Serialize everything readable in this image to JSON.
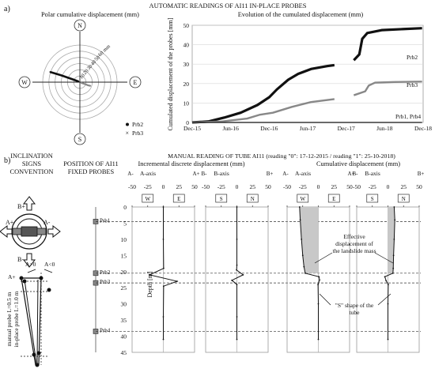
{
  "panel_a": {
    "label": "a)",
    "main_title": "AUTOMATIC READINGS OF AI11 IN-PLACE PROBES",
    "polar": {
      "title": "Polar cumulative displacement (mm)",
      "compass": [
        "N",
        "E",
        "S",
        "W"
      ],
      "ring_labels": [
        "10",
        "20",
        "30",
        "40",
        "50",
        "60 mm"
      ],
      "ring_values": [
        10,
        20,
        30,
        40,
        50,
        60
      ],
      "legend": [
        {
          "name": "Prb2",
          "color": "#111111",
          "marker": "circle"
        },
        {
          "name": "Prb3",
          "color": "#888888",
          "marker": "x"
        }
      ]
    }
  },
  "panel_b": {
    "label": "b)",
    "conv_title": [
      "INCLINATION",
      "SIGNS",
      "CONVENTION"
    ],
    "conv_labels": {
      "bplus": "B+",
      "bminus": "B-",
      "aplus": "A+",
      "aminus": "A-"
    },
    "probe_labels": {
      "agt": "A>0",
      "alt": "A<0",
      "aplus": "A+",
      "manual": "manual probe L=0.5 m",
      "inplace": "in-place probe L=1.0 m"
    },
    "fixed_title": [
      "POSITION OF AI11",
      "FIXED PROBES"
    ],
    "manual_title": "MANUAL READING OF TUBE AI11 (reading \"0\": 17-12-2015 / reading \"1\": 25-10-2018)",
    "inc_title": "Incremental discrete displacement (mm)",
    "cum_title": "Cumulative displacement (mm)",
    "axis_a": "A-axis",
    "axis_b": "B-axis",
    "depth_label": "Depth [m]",
    "probe_names": [
      "Prb1",
      "Prb2",
      "Prb3",
      "Prb4"
    ],
    "annotation_effective": [
      "Effective",
      "displacement of",
      "the landslide mass"
    ],
    "annotation_s": [
      "\"S\" shape of the",
      "tube"
    ]
  },
  "chart_data": [
    {
      "type": "scatter",
      "title": "Polar cumulative displacement (mm)",
      "axis": "polar",
      "r_max": 60,
      "series": [
        {
          "name": "Prb2",
          "color": "#111111",
          "points": [
            [
              -2,
              1
            ],
            [
              -10,
              4
            ],
            [
              -20,
              7.5
            ],
            [
              -30,
              11
            ],
            [
              -40,
              14
            ],
            [
              -48,
              16.5
            ]
          ]
        },
        {
          "name": "Prb3",
          "color": "#888888",
          "points": [
            [
              2,
              -1
            ],
            [
              8,
              -3
            ],
            [
              13,
              -5
            ],
            [
              17,
              -6
            ]
          ]
        }
      ]
    },
    {
      "type": "scatter",
      "title": "Evolution of the cumulated displacement  (mm)",
      "ylabel": "Cumulated displacement of the probes [mm]",
      "x_ticks": [
        "Dec-15",
        "Jun-16",
        "Dec-16",
        "Jun-17",
        "Dec-17",
        "Jun-18",
        "Dec-18"
      ],
      "ylim": [
        0,
        50
      ],
      "y_ticks": [
        0,
        10,
        20,
        30,
        40,
        50
      ],
      "series": [
        {
          "name": "Prb2",
          "color": "#111111",
          "points": [
            [
              "2015-12-15",
              0
            ],
            [
              "2016-03-01",
              0.5
            ],
            [
              "2016-05-15",
              2.5
            ],
            [
              "2016-08-01",
              5
            ],
            [
              "2016-10-20",
              9
            ],
            [
              "2016-12-15",
              13
            ],
            [
              "2017-01-20",
              17
            ],
            [
              "2017-03-15",
              22
            ],
            [
              "2017-05-01",
              25
            ],
            [
              "2017-07-01",
              27.5
            ],
            [
              "2017-09-15",
              29
            ],
            [
              "2017-10-20",
              29.5
            ]
          ]
        },
        {
          "name": "Prb2",
          "color": "#111111",
          "points": [
            [
              "2018-01-20",
              32
            ],
            [
              "2018-02-15",
              35
            ],
            [
              "2018-03-01",
              43
            ],
            [
              "2018-03-25",
              46
            ],
            [
              "2018-06-01",
              47.5
            ],
            [
              "2018-09-01",
              48
            ],
            [
              "2018-12-10",
              48.5
            ]
          ]
        },
        {
          "name": "Prb3",
          "color": "#888888",
          "points": [
            [
              "2015-12-15",
              0
            ],
            [
              "2016-05-01",
              0.5
            ],
            [
              "2016-09-01",
              2
            ],
            [
              "2016-11-01",
              4
            ],
            [
              "2017-01-01",
              5
            ],
            [
              "2017-04-01",
              8
            ],
            [
              "2017-07-01",
              10.5
            ],
            [
              "2017-10-20",
              12
            ]
          ]
        },
        {
          "name": "Prb3",
          "color": "#888888",
          "points": [
            [
              "2018-01-20",
              14
            ],
            [
              "2018-03-15",
              16
            ],
            [
              "2018-04-01",
              19
            ],
            [
              "2018-05-01",
              20.5
            ],
            [
              "2018-08-01",
              20.8
            ],
            [
              "2018-12-10",
              21
            ]
          ]
        },
        {
          "name": "Prb1, Prb4",
          "color": "#111111",
          "points": [
            [
              "2015-12-15",
              0
            ],
            [
              "2017-10-20",
              0
            ],
            [
              "2018-01-20",
              0
            ],
            [
              "2018-12-10",
              0
            ]
          ]
        }
      ]
    },
    {
      "type": "line",
      "title": "Incremental discrete displacement (mm)",
      "subplots": [
        {
          "name": "A-axis",
          "x_ticks": [
            "-50",
            "-25",
            "0",
            "25",
            "50"
          ],
          "xlim": [
            -50,
            50
          ],
          "end_labels": [
            "A-",
            "A+"
          ],
          "sign_boxes": [
            "W",
            "E"
          ],
          "points": [
            [
              0,
              0
            ],
            [
              0,
              10
            ],
            [
              0.5,
              19
            ],
            [
              -22,
              21
            ],
            [
              22,
              23
            ],
            [
              0.5,
              24.5
            ],
            [
              0,
              34
            ],
            [
              0,
              41
            ]
          ]
        },
        {
          "name": "B-axis",
          "x_ticks": [
            "-50",
            "-25",
            "0",
            "25",
            "50"
          ],
          "xlim": [
            -50,
            50
          ],
          "end_labels": [
            "B-",
            "B+"
          ],
          "sign_boxes": [
            "S",
            "N"
          ],
          "points": [
            [
              0,
              0
            ],
            [
              0,
              10
            ],
            [
              0,
              18
            ],
            [
              -0.5,
              19.5
            ],
            [
              10,
              21
            ],
            [
              -8,
              22.7
            ],
            [
              0,
              24
            ],
            [
              0,
              34
            ],
            [
              0,
              41
            ]
          ]
        }
      ]
    },
    {
      "type": "line",
      "title": "Cumulative displacement (mm)",
      "subplots": [
        {
          "name": "A-axis",
          "x_ticks": [
            "-50",
            "-25",
            "0",
            "25",
            "50"
          ],
          "xlim": [
            -50,
            50
          ],
          "end_labels": [
            "A-",
            "A+"
          ],
          "sign_boxes": [
            "W",
            "E"
          ],
          "points": [
            [
              -30,
              0
            ],
            [
              -29,
              4
            ],
            [
              -27,
              10
            ],
            [
              -25,
              15
            ],
            [
              -23,
              18.5
            ],
            [
              -21,
              20.5
            ],
            [
              1,
              21.6
            ],
            [
              2,
              22.6
            ],
            [
              -0.5,
              24
            ],
            [
              0,
              30
            ],
            [
              0,
              41
            ]
          ]
        },
        {
          "name": "B-axis",
          "x_ticks": [
            "-50",
            "-25",
            "0",
            "25",
            "50"
          ],
          "xlim": [
            -50,
            50
          ],
          "end_labels": [
            "B-",
            "B+"
          ],
          "sign_boxes": [
            "S",
            "N"
          ],
          "points": [
            [
              10,
              0
            ],
            [
              11,
              4
            ],
            [
              10,
              10
            ],
            [
              9,
              15
            ],
            [
              8.5,
              19
            ],
            [
              8,
              20.5
            ],
            [
              -5,
              21.6
            ],
            [
              -3,
              22.8
            ],
            [
              0.5,
              24
            ],
            [
              0,
              30
            ],
            [
              0,
              41
            ]
          ]
        }
      ],
      "ylabel": "Depth [m]",
      "ylim": [
        0,
        45
      ],
      "y_ticks": [
        0,
        5,
        10,
        15,
        20,
        25,
        30,
        35,
        40,
        45
      ],
      "probes": [
        {
          "name": "Prb1",
          "depth": 4.5
        },
        {
          "name": "Prb2",
          "depth": 20.5
        },
        {
          "name": "Prb3",
          "depth": 23.5
        },
        {
          "name": "Prb4",
          "depth": 38.5
        }
      ]
    }
  ]
}
